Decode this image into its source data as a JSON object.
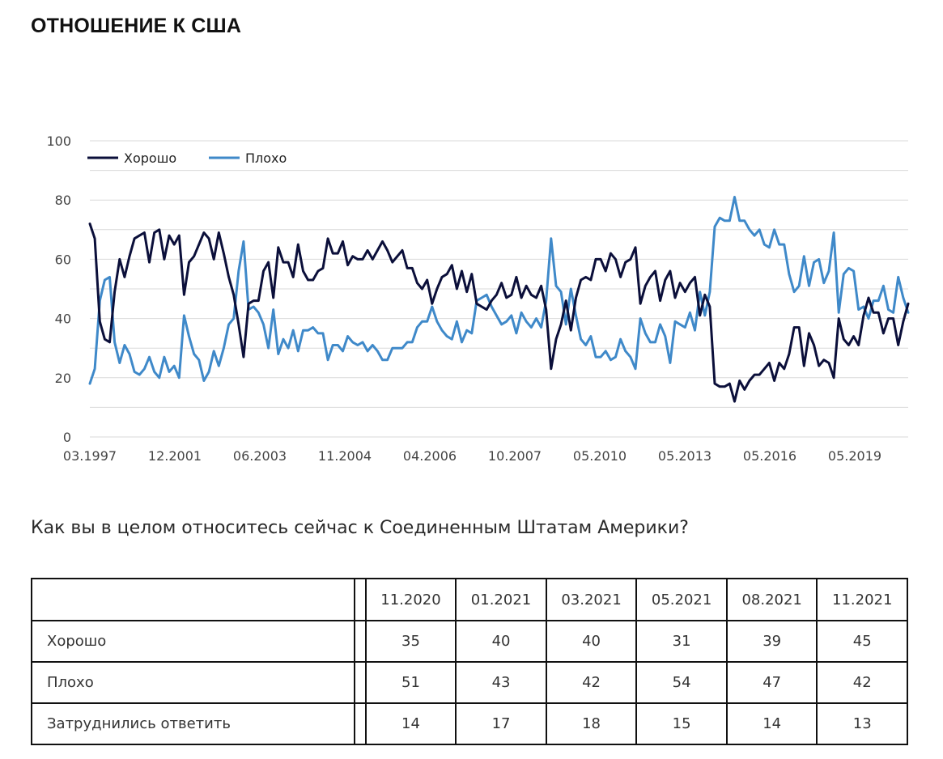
{
  "page": {
    "title": "ОТНОШЕНИЕ К США"
  },
  "colors": {
    "good": "#0b0f3a",
    "bad": "#3f89c9",
    "grid": "#d9d9d9",
    "axis_text": "#444444"
  },
  "chart_data": {
    "type": "line",
    "title": "",
    "xlabel": "",
    "ylabel": "",
    "ylim": [
      0,
      100
    ],
    "yticks": [
      0,
      20,
      40,
      60,
      80,
      100
    ],
    "grid": true,
    "legend": "top-left",
    "x_tick_labels": [
      "03.1997",
      "12.2001",
      "06.2003",
      "11.2004",
      "04.2006",
      "10.2007",
      "05.2010",
      "05.2013",
      "05.2016",
      "05.2019"
    ],
    "series": [
      {
        "name": "Хорошо",
        "values": [
          72,
          67,
          39,
          33,
          32,
          49,
          60,
          54,
          61,
          67,
          68,
          69,
          59,
          69,
          70,
          60,
          68,
          65,
          68,
          48,
          59,
          61,
          65,
          69,
          67,
          60,
          69,
          62,
          54,
          48,
          38,
          27,
          45,
          46,
          46,
          56,
          59,
          47,
          64,
          59,
          59,
          54,
          65,
          56,
          53,
          53,
          56,
          57,
          67,
          62,
          62,
          66,
          58,
          61,
          60,
          60,
          63,
          60,
          63,
          66,
          63,
          59,
          61,
          63,
          57,
          57,
          52,
          50,
          53,
          45,
          50,
          54,
          55,
          58,
          50,
          56,
          49,
          55,
          45,
          44,
          43,
          46,
          48,
          52,
          47,
          48,
          54,
          47,
          51,
          48,
          47,
          51,
          43,
          23,
          33,
          38,
          46,
          36,
          47,
          53,
          54,
          53,
          60,
          60,
          56,
          62,
          60,
          54,
          59,
          60,
          64,
          45,
          51,
          54,
          56,
          46,
          53,
          56,
          47,
          52,
          49,
          52,
          54,
          41,
          48,
          44,
          18,
          17,
          17,
          18,
          12,
          19,
          16,
          19,
          21,
          21,
          23,
          25,
          19,
          25,
          23,
          28,
          37,
          37,
          24,
          35,
          31,
          24,
          26,
          25,
          20,
          40,
          33,
          31,
          34,
          31,
          41,
          47,
          42,
          42,
          35,
          40,
          40,
          31,
          39,
          45
        ]
      },
      {
        "name": "Плохо",
        "values": [
          18,
          23,
          46,
          53,
          54,
          32,
          25,
          31,
          28,
          22,
          21,
          23,
          27,
          22,
          20,
          27,
          22,
          24,
          20,
          41,
          34,
          28,
          26,
          19,
          22,
          29,
          24,
          30,
          38,
          40,
          56,
          66,
          43,
          44,
          42,
          38,
          30,
          43,
          28,
          33,
          30,
          36,
          29,
          36,
          36,
          37,
          35,
          35,
          26,
          31,
          31,
          29,
          34,
          32,
          31,
          32,
          29,
          31,
          29,
          26,
          26,
          30,
          30,
          30,
          32,
          32,
          37,
          39,
          39,
          44,
          39,
          36,
          34,
          33,
          39,
          32,
          36,
          35,
          46,
          47,
          48,
          44,
          41,
          38,
          39,
          41,
          35,
          42,
          39,
          37,
          40,
          37,
          46,
          67,
          51,
          49,
          38,
          50,
          41,
          33,
          31,
          34,
          27,
          27,
          29,
          26,
          27,
          33,
          29,
          27,
          23,
          40,
          35,
          32,
          32,
          38,
          34,
          25,
          39,
          38,
          37,
          42,
          36,
          49,
          41,
          49,
          71,
          74,
          73,
          73,
          81,
          73,
          73,
          70,
          68,
          70,
          65,
          64,
          70,
          65,
          65,
          55,
          49,
          51,
          61,
          51,
          59,
          60,
          52,
          56,
          69,
          42,
          55,
          57,
          56,
          43,
          44,
          40,
          46,
          46,
          51,
          43,
          42,
          54,
          47,
          42
        ]
      }
    ]
  },
  "question": "Как вы в целом относитесь сейчас к Соединенным Штатам Америки?",
  "table": {
    "columns": [
      "11.2020",
      "01.2021",
      "03.2021",
      "05.2021",
      "08.2021",
      "11.2021"
    ],
    "rows": [
      {
        "label": "Хорошо",
        "values": [
          "35",
          "40",
          "40",
          "31",
          "39",
          "45"
        ]
      },
      {
        "label": "Плохо",
        "values": [
          "51",
          "43",
          "42",
          "54",
          "47",
          "42"
        ]
      },
      {
        "label": "Затруднились ответить",
        "values": [
          "14",
          "17",
          "18",
          "15",
          "14",
          "13"
        ]
      }
    ]
  }
}
